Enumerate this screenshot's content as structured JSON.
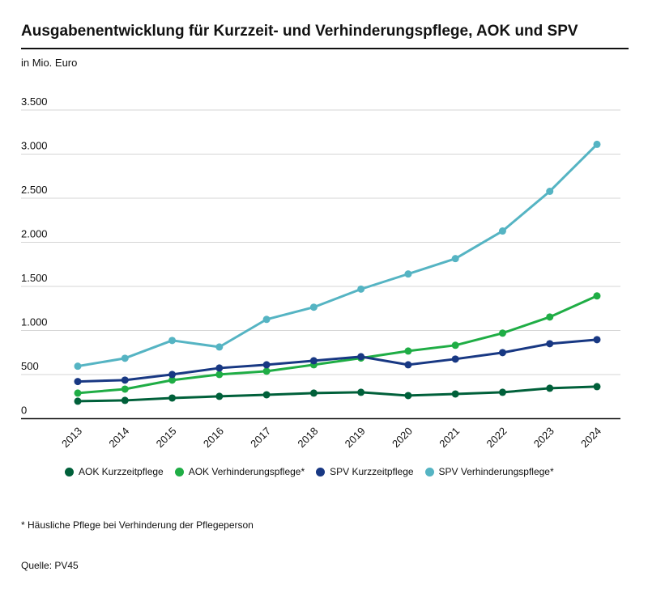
{
  "title": "Ausgabenentwicklung für Kurzzeit- und Verhinderungspflege, AOK und SPV",
  "unit": "in Mio. Euro",
  "footnote": "* Häusliche Pflege bei Verhinderung der Pflegeperson",
  "source": "Quelle: PV45",
  "chart_data": {
    "type": "line",
    "title": "Ausgabenentwicklung für Kurzzeit- und Verhinderungspflege, AOK und SPV",
    "ylabel": "in Mio. Euro",
    "ylim": [
      0,
      3500
    ],
    "yticks": [
      0,
      500,
      1000,
      1500,
      2000,
      2500,
      3000,
      3500
    ],
    "ytick_labels": [
      "0",
      "500",
      "1.000",
      "1.500",
      "2.000",
      "2.500",
      "3.000",
      "3.500"
    ],
    "grid": true,
    "legend": "bottom",
    "x": [
      "2013",
      "2014",
      "2015",
      "2016",
      "2017",
      "2018",
      "2019",
      "2020",
      "2021",
      "2022",
      "2023",
      "2024"
    ],
    "series": [
      {
        "name": "AOK Kurzzeitpflege",
        "color": "#00603a",
        "values": [
          198,
          207,
          234,
          253,
          271,
          290,
          299,
          262,
          280,
          299,
          345,
          363
        ]
      },
      {
        "name": "AOK Verhinderungspflege*",
        "color": "#1fad45",
        "values": [
          290,
          335,
          437,
          501,
          538,
          611,
          687,
          767,
          832,
          970,
          1153,
          1392
        ]
      },
      {
        "name": "SPV Kurzzeitpflege",
        "color": "#183883",
        "values": [
          421,
          437,
          501,
          574,
          611,
          657,
          703,
          611,
          676,
          749,
          850,
          896
        ]
      },
      {
        "name": "SPV Verhinderungspflege*",
        "color": "#55b4c3",
        "values": [
          595,
          685,
          887,
          813,
          1126,
          1264,
          1469,
          1641,
          1815,
          2128,
          2578,
          3111
        ]
      }
    ]
  }
}
